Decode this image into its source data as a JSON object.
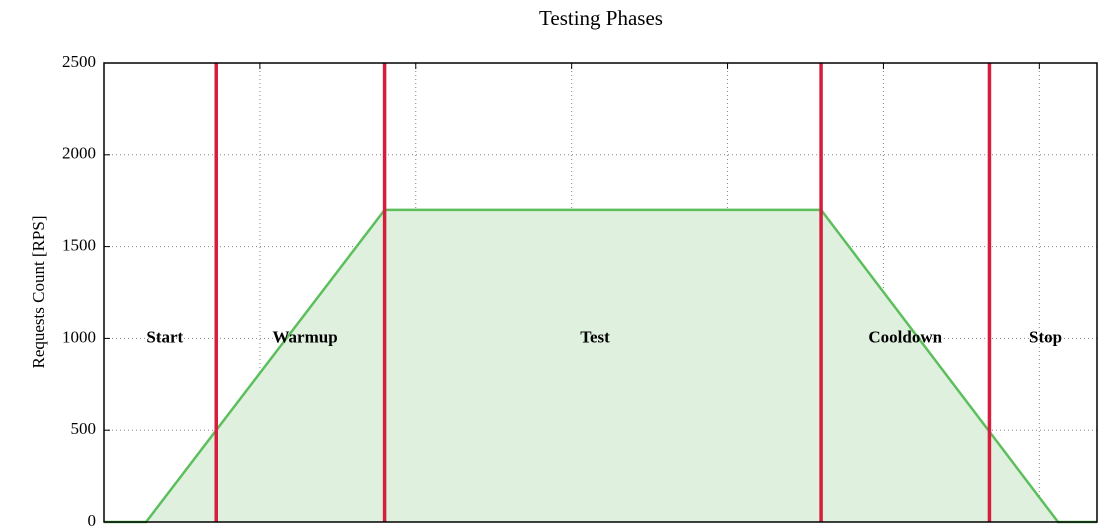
{
  "chart_data": {
    "type": "area",
    "title": "Testing Phases",
    "ylabel": "Requests Count [RPS]",
    "x": [
      0,
      0.27,
      1.8,
      4.6,
      6.12,
      6.37
    ],
    "values": [
      0,
      0,
      1700,
      1700,
      0,
      0
    ],
    "color": "#5cbf5c",
    "fill_color": "#dff0df",
    "xlim": [
      0,
      6.37
    ],
    "xticks": [
      1,
      2,
      3,
      4,
      5,
      6
    ],
    "ylim": [
      0,
      2500
    ],
    "yticks": [
      0,
      500,
      1000,
      1500,
      2000,
      2500
    ],
    "grid": true,
    "vlines": [
      0.72,
      1.8,
      4.6,
      5.68
    ],
    "vline_color": "#d61e3c",
    "annotations": [
      {
        "text": "Start",
        "x": 0.39,
        "y": 1000
      },
      {
        "text": "Warmup",
        "x": 1.29,
        "y": 1000
      },
      {
        "text": "Test",
        "x": 3.15,
        "y": 1000
      },
      {
        "text": "Cooldown",
        "x": 5.14,
        "y": 1000
      },
      {
        "text": "Stop",
        "x": 6.04,
        "y": 1000
      }
    ]
  }
}
